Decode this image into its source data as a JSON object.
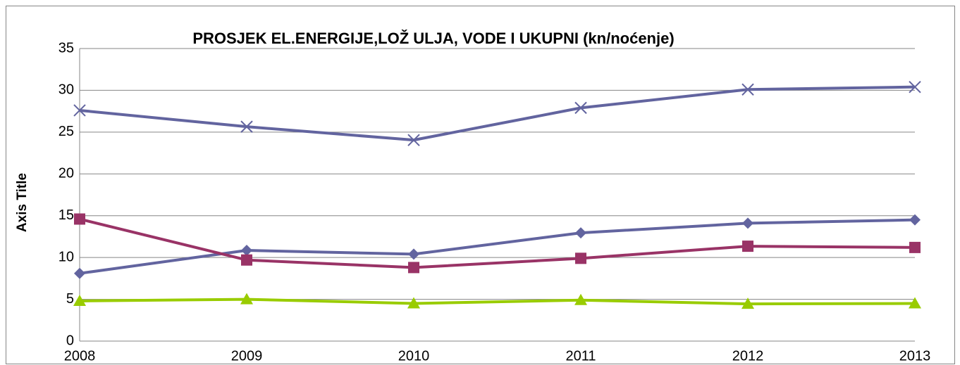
{
  "chart_data": {
    "type": "line",
    "title": "PROSJEK EL.ENERGIJE,LOŽ ULJA, VODE I UKUPNI (kn/noćenje)",
    "y_axis_label": "Axis Title",
    "categories": [
      "2008",
      "2009",
      "2010",
      "2011",
      "2012",
      "2013"
    ],
    "series": [
      {
        "color": "#62649f",
        "marker": "diamond",
        "values": [
          8.1,
          10.85,
          10.4,
          12.95,
          14.1,
          14.5
        ]
      },
      {
        "color": "#993366",
        "marker": "square",
        "values": [
          14.6,
          9.7,
          8.8,
          9.9,
          11.35,
          11.2
        ]
      },
      {
        "color": "#99cc00",
        "marker": "triangle",
        "values": [
          4.8,
          5.0,
          4.5,
          4.9,
          4.45,
          4.5
        ]
      },
      {
        "color": "#62649f",
        "marker": "x",
        "values": [
          27.6,
          25.65,
          24.05,
          27.9,
          30.1,
          30.4
        ]
      }
    ],
    "ylim": [
      0,
      35
    ],
    "yticks": [
      0,
      5,
      10,
      15,
      20,
      25,
      30,
      35
    ],
    "grid": true
  }
}
